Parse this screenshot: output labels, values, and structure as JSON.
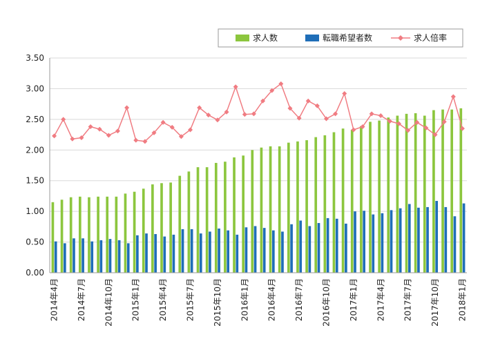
{
  "chart_data": {
    "type": "bar",
    "title": "",
    "xlabel": "",
    "ylabel": "",
    "ylim": [
      0,
      3.5
    ],
    "yticks": [
      "0.00",
      "0.50",
      "1.00",
      "1.50",
      "2.00",
      "2.50",
      "3.00",
      "3.50"
    ],
    "grid": true,
    "legend_position": "top-right",
    "categories": [
      "2014年4月",
      "2014年5月",
      "2014年6月",
      "2014年7月",
      "2014年8月",
      "2014年9月",
      "2014年10月",
      "2014年11月",
      "2014年12月",
      "2015年1月",
      "2015年2月",
      "2015年3月",
      "2015年4月",
      "2015年5月",
      "2015年6月",
      "2015年7月",
      "2015年8月",
      "2015年9月",
      "2015年10月",
      "2015年11月",
      "2015年12月",
      "2016年1月",
      "2016年2月",
      "2016年3月",
      "2016年4月",
      "2016年5月",
      "2016年6月",
      "2016年7月",
      "2016年8月",
      "2016年9月",
      "2016年10月",
      "2016年11月",
      "2016年12月",
      "2017年1月",
      "2017年2月",
      "2017年3月",
      "2017年4月",
      "2017年5月",
      "2017年6月",
      "2017年7月",
      "2017年8月",
      "2017年9月",
      "2017年10月",
      "2017年11月",
      "2017年12月",
      "2018年1月"
    ],
    "shown_tick_labels": [
      "2014年4月",
      "2014年7月",
      "2014年10月",
      "2015年1月",
      "2015年4月",
      "2015年7月",
      "2015年10月",
      "2016年1月",
      "2016年4月",
      "2016年7月",
      "2016年10月",
      "2017年1月",
      "2017年4月",
      "2017年7月",
      "2017年10月",
      "2018年1月"
    ],
    "series": [
      {
        "name": "求人数",
        "type": "bar",
        "color": "#8cc63e",
        "values": [
          1.15,
          1.19,
          1.23,
          1.24,
          1.23,
          1.24,
          1.24,
          1.24,
          1.29,
          1.32,
          1.37,
          1.44,
          1.46,
          1.47,
          1.58,
          1.65,
          1.72,
          1.72,
          1.79,
          1.81,
          1.88,
          1.91,
          2.0,
          2.04,
          2.06,
          2.06,
          2.12,
          2.14,
          2.16,
          2.21,
          2.24,
          2.29,
          2.35,
          2.33,
          2.39,
          2.46,
          2.48,
          2.53,
          2.56,
          2.59,
          2.6,
          2.56,
          2.65,
          2.66,
          2.66,
          2.68
        ]
      },
      {
        "name": "転職希望者数",
        "type": "bar",
        "color": "#1f6eb8",
        "values": [
          0.51,
          0.48,
          0.56,
          0.56,
          0.51,
          0.53,
          0.55,
          0.53,
          0.48,
          0.61,
          0.64,
          0.63,
          0.59,
          0.62,
          0.71,
          0.71,
          0.64,
          0.67,
          0.72,
          0.69,
          0.62,
          0.74,
          0.76,
          0.73,
          0.69,
          0.67,
          0.79,
          0.85,
          0.76,
          0.81,
          0.89,
          0.88,
          0.8,
          1.0,
          1.01,
          0.95,
          0.97,
          1.02,
          1.05,
          1.12,
          1.06,
          1.07,
          1.17,
          1.07,
          0.92,
          1.13
        ]
      },
      {
        "name": "求人倍率",
        "type": "line",
        "color": "#f07c82",
        "values": [
          2.23,
          2.5,
          2.18,
          2.2,
          2.38,
          2.34,
          2.24,
          2.31,
          2.69,
          2.16,
          2.14,
          2.28,
          2.45,
          2.37,
          2.22,
          2.33,
          2.69,
          2.57,
          2.49,
          2.62,
          3.03,
          2.58,
          2.59,
          2.8,
          2.97,
          3.08,
          2.68,
          2.52,
          2.8,
          2.72,
          2.51,
          2.59,
          2.92,
          2.33,
          2.38,
          2.59,
          2.56,
          2.47,
          2.43,
          2.32,
          2.45,
          2.36,
          2.25,
          2.46,
          2.87,
          2.35
        ]
      }
    ]
  }
}
